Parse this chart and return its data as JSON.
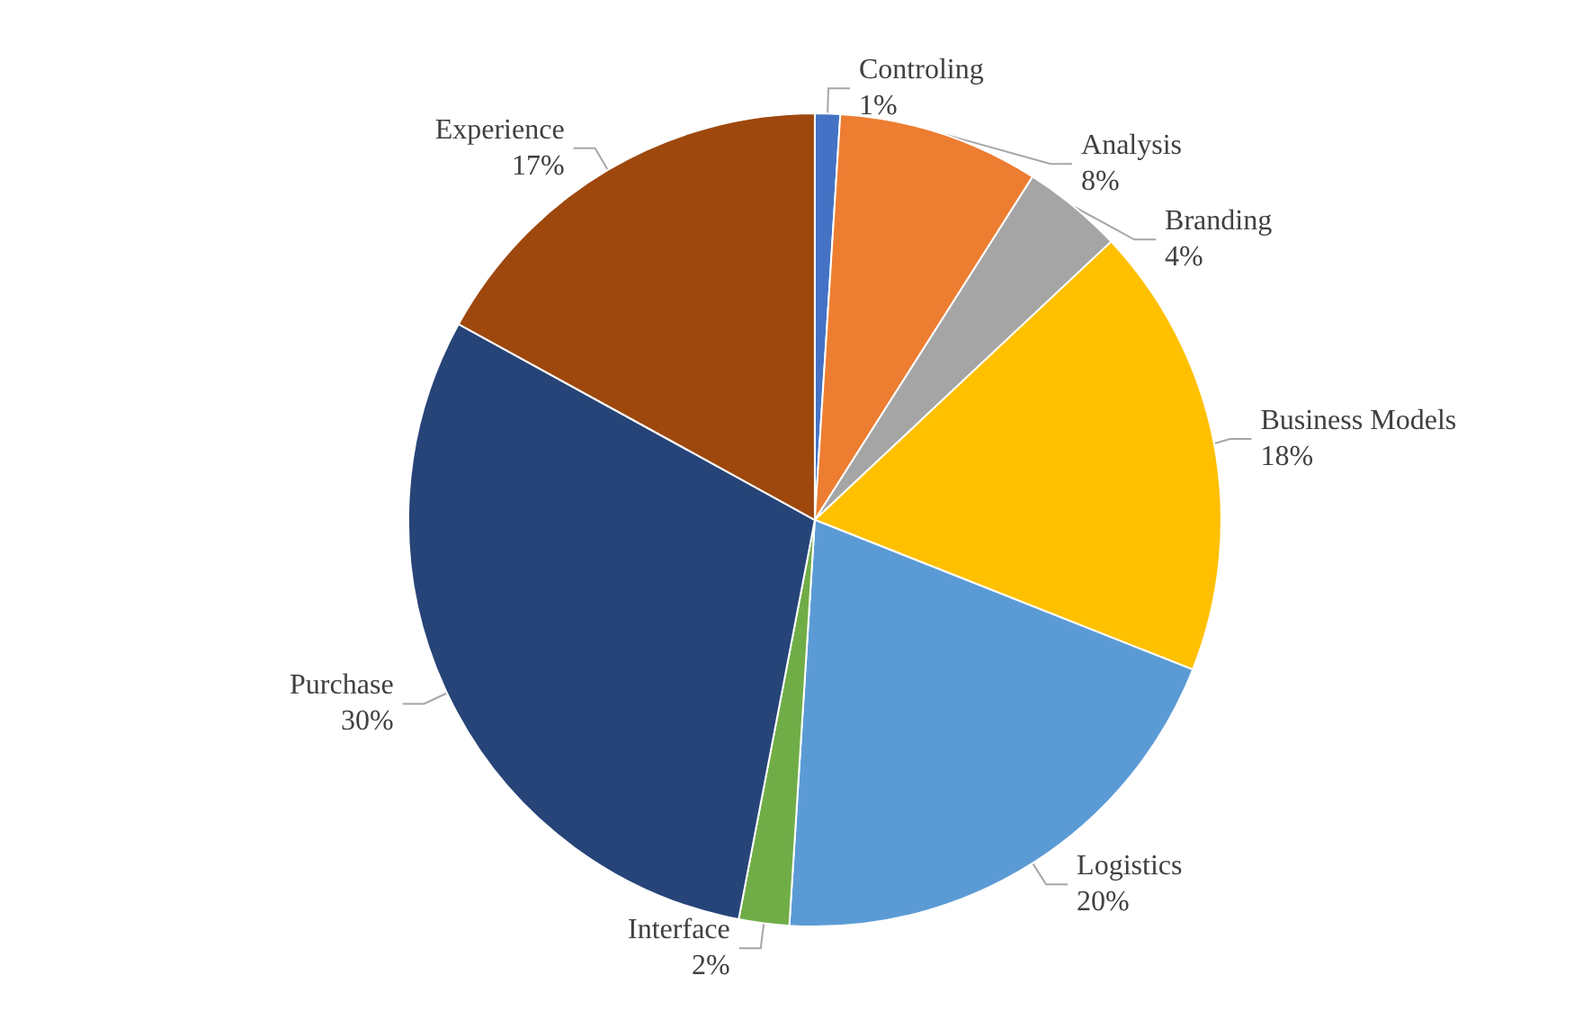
{
  "chart_data": {
    "type": "pie",
    "categories": [
      "Controling",
      "Analysis",
      "Branding",
      "Business Models",
      "Logistics",
      "Interface",
      "Purchase",
      "Experience"
    ],
    "values": [
      1,
      8,
      4,
      18,
      20,
      2,
      30,
      17
    ],
    "colors": [
      "#4472c4",
      "#ed7d31",
      "#a5a5a5",
      "#ffc000",
      "#5b9bd5",
      "#70ad47",
      "#264478",
      "#9e480e"
    ],
    "value_labels": [
      "1%",
      "8%",
      "4%",
      "18%",
      "20%",
      "2%",
      "30%",
      "17%"
    ],
    "legend": false
  }
}
